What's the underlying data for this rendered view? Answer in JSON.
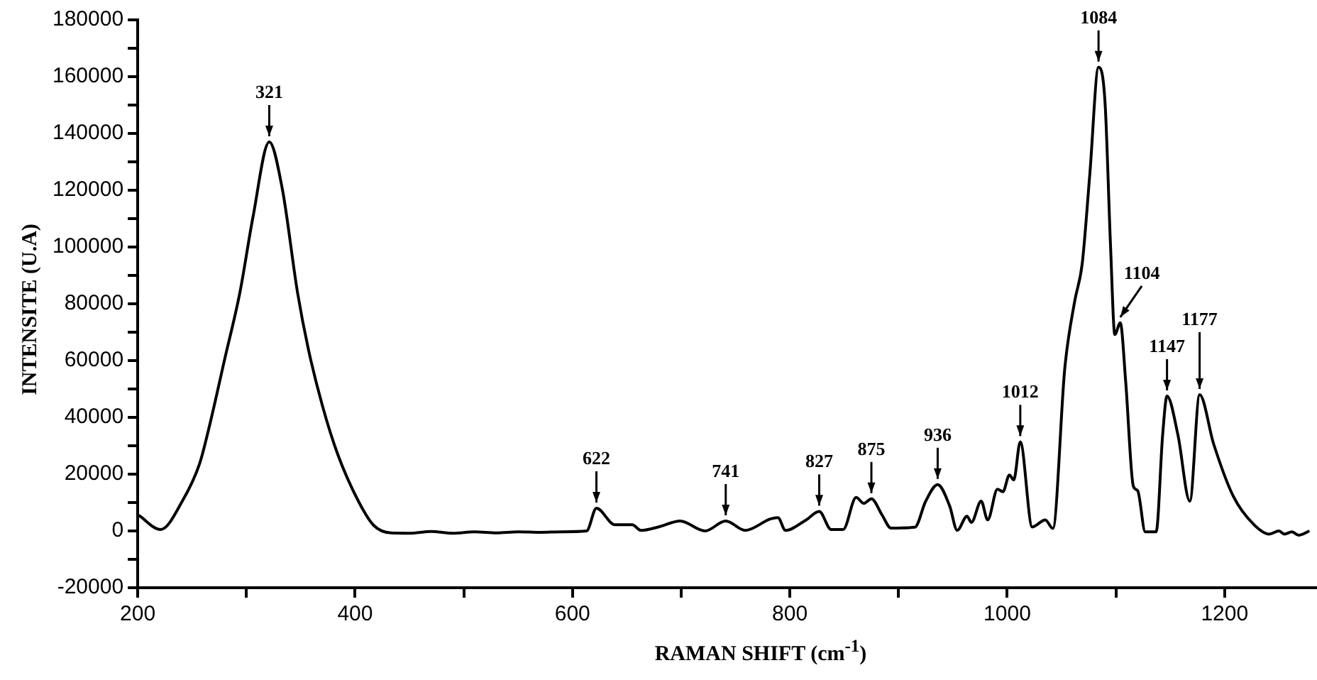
{
  "chart_data": {
    "type": "line",
    "xlabel": "RAMAN SHIFT (cm$^{-1}$)",
    "ylabel": "INTENSITE (U.A)",
    "x": [
      201,
      221,
      241,
      257,
      266,
      280,
      294,
      306,
      321,
      333,
      347,
      357,
      370,
      384,
      403,
      417,
      433,
      450,
      470,
      490,
      510,
      530,
      550,
      570,
      590,
      613,
      622,
      639,
      655,
      663,
      680,
      699,
      722,
      741,
      759,
      782,
      789,
      796,
      815,
      827,
      838,
      849,
      861,
      868,
      875,
      885,
      893,
      915,
      925,
      936,
      947,
      954,
      963,
      967,
      976,
      982,
      991,
      996,
      1002,
      1006,
      1012,
      1023,
      1035,
      1042,
      1053,
      1062,
      1069,
      1076,
      1084,
      1090,
      1095,
      1099,
      1104,
      1109,
      1116,
      1120,
      1127,
      1137,
      1143,
      1147,
      1157,
      1168,
      1177,
      1190,
      1208,
      1227,
      1241,
      1250,
      1255,
      1262,
      1268,
      1278
    ],
    "series": [
      {
        "color": "#000000",
        "values": [
          5500,
          500,
          10500,
          23800,
          37000,
          60500,
          84000,
          110500,
          137000,
          120500,
          84000,
          64000,
          44000,
          27000,
          10500,
          2000,
          -700,
          -800,
          -200,
          -800,
          -300,
          -700,
          -300,
          -500,
          -300,
          0,
          8000,
          2200,
          2200,
          200,
          1500,
          3500,
          0,
          3500,
          200,
          4200,
          4700,
          200,
          3900,
          6900,
          500,
          500,
          11800,
          9700,
          11300,
          5500,
          1000,
          1300,
          10500,
          16300,
          8800,
          200,
          5200,
          3000,
          10500,
          3900,
          14700,
          13800,
          19700,
          18000,
          31400,
          1400,
          3900,
          900,
          57500,
          80800,
          94200,
          125800,
          163300,
          150800,
          100800,
          69200,
          73300,
          52500,
          15800,
          14200,
          -300,
          -300,
          33900,
          47500,
          33900,
          10500,
          48000,
          30500,
          12200,
          2200,
          -1100,
          0,
          -1100,
          -300,
          -1500,
          0
        ]
      }
    ],
    "xlim": [
      200,
      1285
    ],
    "xticks": [
      200,
      {
        "value": 300,
        "label": null
      },
      400,
      {
        "value": 500,
        "label": null
      },
      600,
      {
        "value": 700,
        "label": null
      },
      800,
      {
        "value": 900,
        "label": null
      },
      1000,
      {
        "value": 1100,
        "label": null
      },
      1200
    ],
    "ylim": [
      -20000,
      180000
    ],
    "yticks": [
      -20000,
      {
        "value": -10000,
        "label": null
      },
      0,
      {
        "value": 10000,
        "label": null
      },
      20000,
      {
        "value": 30000,
        "label": null
      },
      40000,
      {
        "value": 50000,
        "label": null
      },
      60000,
      {
        "value": 70000,
        "label": null
      },
      80000,
      {
        "value": 90000,
        "label": null
      },
      100000,
      {
        "value": 110000,
        "label": null
      },
      120000,
      {
        "value": 130000,
        "label": null
      },
      140000,
      {
        "value": 150000,
        "label": null
      },
      160000,
      {
        "value": 170000,
        "label": null
      },
      180000
    ],
    "annotations": [
      {
        "text": "321",
        "x": 321,
        "y": 137000
      },
      {
        "text": "622",
        "x": 622,
        "y": 8000
      },
      {
        "text": "741",
        "x": 741,
        "y": 3500
      },
      {
        "text": "827",
        "x": 827,
        "y": 6900
      },
      {
        "text": "875",
        "x": 875,
        "y": 11300
      },
      {
        "text": "936",
        "x": 936,
        "y": 16300
      },
      {
        "text": "1012",
        "x": 1012,
        "y": 31400
      },
      {
        "text": "1084",
        "x": 1084,
        "y": 163300
      },
      {
        "text": "1104",
        "x": 1104,
        "y": 73300
      },
      {
        "text": "1147",
        "x": 1147,
        "y": 47500
      },
      {
        "text": "1177",
        "x": 1177,
        "y": 48000
      }
    ]
  }
}
